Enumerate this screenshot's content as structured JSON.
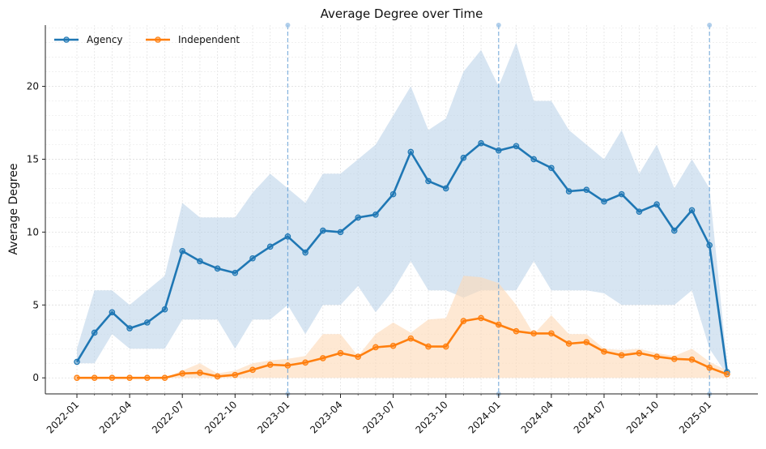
{
  "chart_data": {
    "type": "line",
    "title": "Average Degree over Time",
    "xlabel": "",
    "ylabel": "Average Degree",
    "ylim": [
      -1.1,
      24.2
    ],
    "yticks": [
      0,
      5,
      10,
      15,
      20
    ],
    "x": [
      "2022-01",
      "2022-02",
      "2022-03",
      "2022-04",
      "2022-05",
      "2022-06",
      "2022-07",
      "2022-08",
      "2022-09",
      "2022-10",
      "2022-11",
      "2022-12",
      "2023-01",
      "2023-02",
      "2023-03",
      "2023-04",
      "2023-05",
      "2023-06",
      "2023-07",
      "2023-08",
      "2023-09",
      "2023-10",
      "2023-11",
      "2023-12",
      "2024-01",
      "2024-02",
      "2024-03",
      "2024-04",
      "2024-05",
      "2024-06",
      "2024-07",
      "2024-08",
      "2024-09",
      "2024-10",
      "2024-11",
      "2024-12",
      "2025-01",
      "2025-02"
    ],
    "xticks": [
      "2022-01",
      "2022-04",
      "2022-07",
      "2022-10",
      "2023-01",
      "2023-04",
      "2023-07",
      "2023-10",
      "2024-01",
      "2024-04",
      "2024-07",
      "2024-10",
      "2025-01"
    ],
    "vlines": [
      "2023-01",
      "2024-01",
      "2025-01"
    ],
    "grid": true,
    "legend_position": "top-left",
    "series": [
      {
        "name": "Agency",
        "color": "#1f77b4",
        "band_color": "#b7d0e8",
        "values": [
          1.1,
          3.1,
          4.5,
          3.4,
          3.8,
          4.7,
          8.7,
          8.0,
          7.5,
          7.2,
          8.2,
          9.0,
          9.7,
          8.6,
          10.1,
          10.0,
          11.0,
          11.2,
          12.6,
          15.5,
          13.5,
          13.0,
          15.1,
          16.1,
          15.6,
          15.9,
          15.0,
          14.4,
          12.8,
          12.9,
          12.1,
          12.6,
          11.4,
          11.9,
          10.1,
          11.5,
          9.1,
          0.4
        ],
        "band_low": [
          1.0,
          1.0,
          3.0,
          2.0,
          2.0,
          2.0,
          4.0,
          4.0,
          4.0,
          2.0,
          4.0,
          4.0,
          5.0,
          3.0,
          5.0,
          5.0,
          6.3,
          4.5,
          6.0,
          8.0,
          6.0,
          6.0,
          5.5,
          6.0,
          6.0,
          6.0,
          8.0,
          6.0,
          6.0,
          6.0,
          5.8,
          5.0,
          5.0,
          5.0,
          5.0,
          6.0,
          2.0,
          0.2
        ],
        "band_high": [
          2.0,
          6.0,
          6.0,
          5.0,
          6.0,
          7.0,
          12.0,
          11.0,
          11.0,
          11.0,
          12.7,
          14.0,
          13.0,
          12.0,
          14.0,
          14.0,
          15.0,
          16.0,
          18.0,
          20.0,
          17.0,
          17.8,
          21.0,
          22.5,
          20.0,
          23.0,
          19.0,
          19.0,
          17.0,
          16.0,
          15.0,
          17.0,
          14.0,
          16.0,
          13.0,
          15.0,
          13.0,
          1.0
        ]
      },
      {
        "name": "Independent",
        "color": "#ff7f0e",
        "band_color": "#fdd9b5",
        "values": [
          0.0,
          0.0,
          0.0,
          0.0,
          0.0,
          0.0,
          0.3,
          0.35,
          0.1,
          0.2,
          0.55,
          0.9,
          0.85,
          1.05,
          1.35,
          1.7,
          1.45,
          2.1,
          2.2,
          2.7,
          2.15,
          2.15,
          3.9,
          4.1,
          3.65,
          3.2,
          3.05,
          3.05,
          2.35,
          2.45,
          1.8,
          1.55,
          1.7,
          1.45,
          1.3,
          1.25,
          0.7,
          0.25
        ],
        "band_low": [
          0.0,
          0.0,
          0.0,
          0.0,
          0.0,
          0.0,
          0.0,
          0.0,
          0.0,
          0.0,
          0.0,
          0.0,
          0.0,
          0.0,
          0.0,
          0.0,
          0.0,
          0.0,
          0.0,
          0.0,
          0.0,
          0.0,
          0.0,
          0.0,
          0.0,
          0.0,
          0.0,
          0.0,
          0.0,
          0.0,
          0.0,
          0.0,
          0.0,
          0.0,
          0.0,
          0.0,
          0.0,
          0.0
        ],
        "band_high": [
          0.0,
          0.0,
          0.0,
          0.0,
          0.0,
          0.0,
          0.5,
          1.0,
          0.3,
          0.5,
          1.0,
          1.2,
          1.3,
          1.5,
          3.0,
          3.0,
          1.5,
          3.0,
          3.8,
          3.1,
          4.0,
          4.1,
          7.0,
          6.9,
          6.5,
          5.0,
          3.0,
          4.3,
          3.0,
          3.0,
          2.0,
          1.9,
          2.0,
          1.7,
          1.5,
          2.0,
          1.1,
          0.5
        ]
      }
    ]
  }
}
